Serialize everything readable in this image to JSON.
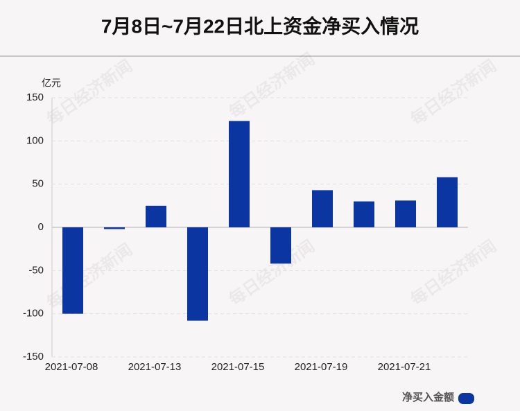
{
  "chart_data": {
    "type": "bar",
    "title": "7月8日~7月22日北上资金净买入情况",
    "y_unit": "亿元",
    "categories": [
      "2021-07-08",
      null,
      "2021-07-13",
      null,
      "2021-07-15",
      null,
      "2021-07-19",
      null,
      "2021-07-21",
      null
    ],
    "series": [
      {
        "name": "净买入金额",
        "color": "#0b35a0",
        "values": [
          -100,
          -2,
          25,
          -108,
          123,
          -42,
          43,
          30,
          31,
          58
        ]
      }
    ],
    "ylim": [
      -150,
      150
    ],
    "yticks": [
      -150,
      -100,
      -50,
      0,
      50,
      100,
      150
    ],
    "grid": true,
    "legend": "bottom-right",
    "watermark": "每日经济新闻"
  }
}
